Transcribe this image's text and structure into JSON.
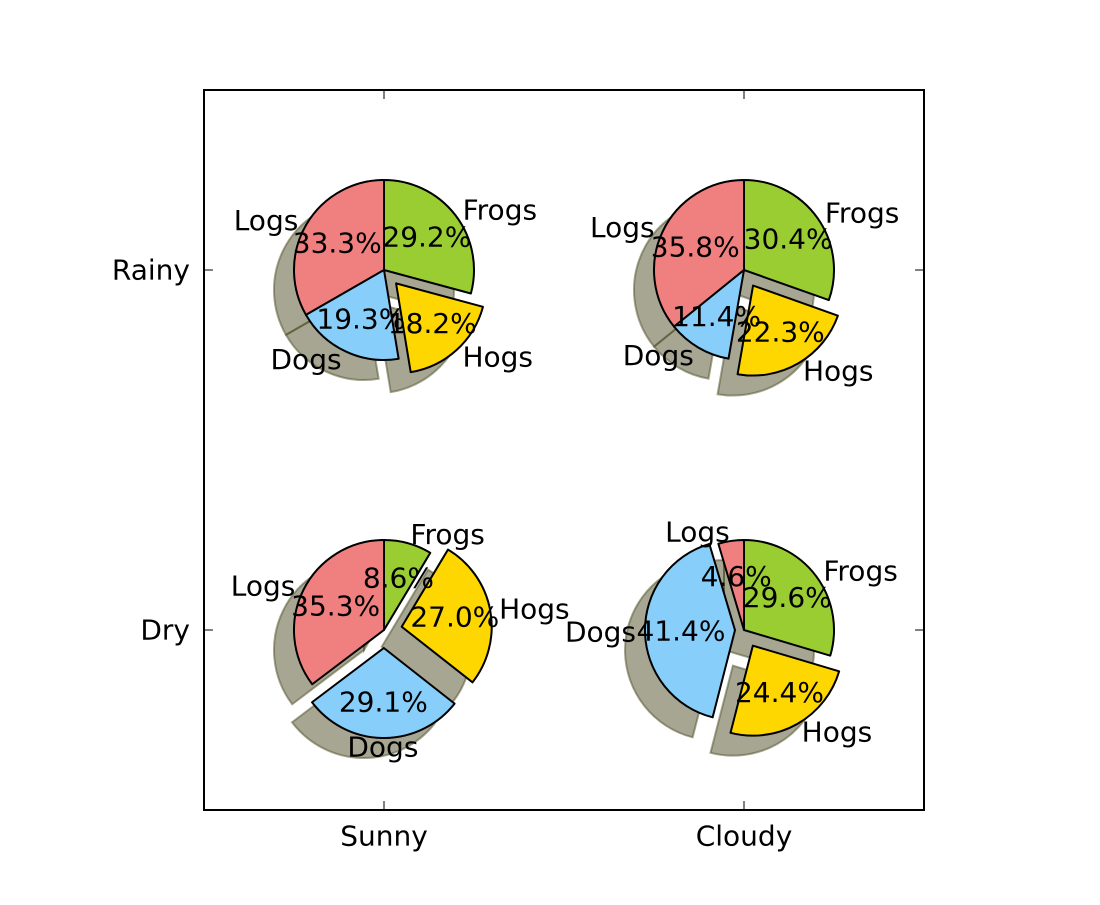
{
  "chart_data": {
    "type": "pie",
    "x_ticks": [
      "Sunny",
      "Cloudy"
    ],
    "y_ticks": [
      "Rainy",
      "Dry"
    ],
    "grid": false,
    "legend": "none",
    "colors": {
      "Logs": "#f08080",
      "Dogs": "#87cefa",
      "Hogs": "#ffd700",
      "Frogs": "#9acd32",
      "shadow": "#4d4d26"
    },
    "pies": [
      {
        "row": "Rainy",
        "col": "Sunny",
        "slices": [
          {
            "label": "Logs",
            "pct_text": "33.3%",
            "value": 33.3,
            "explode": 0
          },
          {
            "label": "Dogs",
            "pct_text": "19.3%",
            "value": 19.3,
            "explode": 0
          },
          {
            "label": "Hogs",
            "pct_text": "18.2%",
            "value": 18.2,
            "explode": 0.2
          },
          {
            "label": "Frogs",
            "pct_text": "29.2%",
            "value": 29.2,
            "explode": 0
          }
        ]
      },
      {
        "row": "Rainy",
        "col": "Cloudy",
        "slices": [
          {
            "label": "Logs",
            "pct_text": "35.8%",
            "value": 35.8,
            "explode": 0
          },
          {
            "label": "Dogs",
            "pct_text": "11.4%",
            "value": 11.4,
            "explode": 0
          },
          {
            "label": "Hogs",
            "pct_text": "22.3%",
            "value": 22.3,
            "explode": 0.2
          },
          {
            "label": "Frogs",
            "pct_text": "30.4%",
            "value": 30.4,
            "explode": 0
          }
        ]
      },
      {
        "row": "Dry",
        "col": "Sunny",
        "slices": [
          {
            "label": "Logs",
            "pct_text": "35.3%",
            "value": 35.3,
            "explode": 0
          },
          {
            "label": "Dogs",
            "pct_text": "29.1%",
            "value": 29.1,
            "explode": 0.2
          },
          {
            "label": "Hogs",
            "pct_text": "27.0%",
            "value": 27.0,
            "explode": 0.2
          },
          {
            "label": "Frogs",
            "pct_text": "8.6%",
            "value": 8.6,
            "explode": 0
          }
        ]
      },
      {
        "row": "Dry",
        "col": "Cloudy",
        "slices": [
          {
            "label": "Logs",
            "pct_text": "4.6%",
            "value": 4.6,
            "explode": 0
          },
          {
            "label": "Dogs",
            "pct_text": "41.4%",
            "value": 41.4,
            "explode": 0.1
          },
          {
            "label": "Hogs",
            "pct_text": "24.4%",
            "value": 24.4,
            "explode": 0.2
          },
          {
            "label": "Frogs",
            "pct_text": "29.6%",
            "value": 29.6,
            "explode": 0
          }
        ]
      }
    ]
  }
}
